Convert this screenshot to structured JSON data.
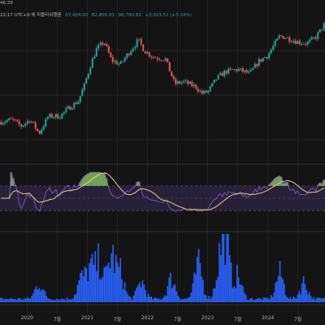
{
  "header": {
    "line1": "46.29",
    "line2_prefix": "22:17 UTC+9 에 피블리쉬했음",
    "ohlc_values": [
      "07,424.02",
      "62,800.01",
      "96,780.81",
      "+3,023.51 (+3.24%)"
    ]
  },
  "x_axis_labels": [
    {
      "label": "2020",
      "x": 2020.0
    },
    {
      "label": "7월",
      "x": 2020.5
    },
    {
      "label": "2021",
      "x": 2021.0
    },
    {
      "label": "7월",
      "x": 2021.5
    },
    {
      "label": "2022",
      "x": 2022.0
    },
    {
      "label": "7월",
      "x": 2022.5
    },
    {
      "label": "2023",
      "x": 2023.0
    },
    {
      "label": "7월",
      "x": 2023.5
    },
    {
      "label": "2024",
      "x": 2024.0
    },
    {
      "label": "7월",
      "x": 2024.5
    }
  ],
  "colors": {
    "up": "#26a69a",
    "down": "#ef5350",
    "rsi_line": "#7e57c2",
    "rsi_ma": "#e8d27a",
    "rsi_band": "#2a2240",
    "overbought_fill": "#8fd16f",
    "volume": "#2962ff",
    "grid": "#232323",
    "panel_sep": "#2f2f2f"
  },
  "chart_data": [
    {
      "type": "candlestick",
      "x_range": [
        2019.55,
        2024.95
      ],
      "y_scale": "log",
      "ylim": [
        3000,
        110000
      ],
      "price_anchors": [
        [
          2019.55,
          8000
        ],
        [
          2019.75,
          8500
        ],
        [
          2019.9,
          7200
        ],
        [
          2020.05,
          8500
        ],
        [
          2020.2,
          6000
        ],
        [
          2020.35,
          9200
        ],
        [
          2020.55,
          9300
        ],
        [
          2020.7,
          11500
        ],
        [
          2020.85,
          13500
        ],
        [
          2020.95,
          20000
        ],
        [
          2021.05,
          33000
        ],
        [
          2021.15,
          50000
        ],
        [
          2021.28,
          60000
        ],
        [
          2021.4,
          38000
        ],
        [
          2021.55,
          34000
        ],
        [
          2021.68,
          45000
        ],
        [
          2021.85,
          63000
        ],
        [
          2021.95,
          48000
        ],
        [
          2022.1,
          41000
        ],
        [
          2022.3,
          39000
        ],
        [
          2022.45,
          21000
        ],
        [
          2022.6,
          22000
        ],
        [
          2022.8,
          19500
        ],
        [
          2022.9,
          16500
        ],
        [
          2023.0,
          17000
        ],
        [
          2023.15,
          24000
        ],
        [
          2023.3,
          28500
        ],
        [
          2023.5,
          30000
        ],
        [
          2023.7,
          27000
        ],
        [
          2023.85,
          37000
        ],
        [
          2024.0,
          43000
        ],
        [
          2024.2,
          70000
        ],
        [
          2024.3,
          67000
        ],
        [
          2024.5,
          60000
        ],
        [
          2024.65,
          58000
        ],
        [
          2024.8,
          68000
        ],
        [
          2024.95,
          96000
        ]
      ]
    },
    {
      "type": "line",
      "name": "",
      "ylim": [
        0,
        100
      ],
      "bands": [
        30,
        70
      ],
      "x_range": [
        2019.55,
        2024.95
      ]
    },
    {
      "type": "bar",
      "name": "",
      "x_range": [
        2019.55,
        2024.95
      ],
      "volume_peaks": [
        [
          2020.2,
          0.28
        ],
        [
          2020.9,
          0.35
        ],
        [
          2021.05,
          0.52
        ],
        [
          2021.2,
          0.62
        ],
        [
          2021.4,
          0.75
        ],
        [
          2021.55,
          0.45
        ],
        [
          2021.9,
          0.3
        ],
        [
          2022.4,
          0.35
        ],
        [
          2022.85,
          0.6
        ],
        [
          2023.2,
          0.55
        ],
        [
          2023.3,
          0.95
        ],
        [
          2023.5,
          0.4
        ],
        [
          2024.2,
          0.45
        ],
        [
          2024.6,
          0.3
        ]
      ]
    }
  ]
}
